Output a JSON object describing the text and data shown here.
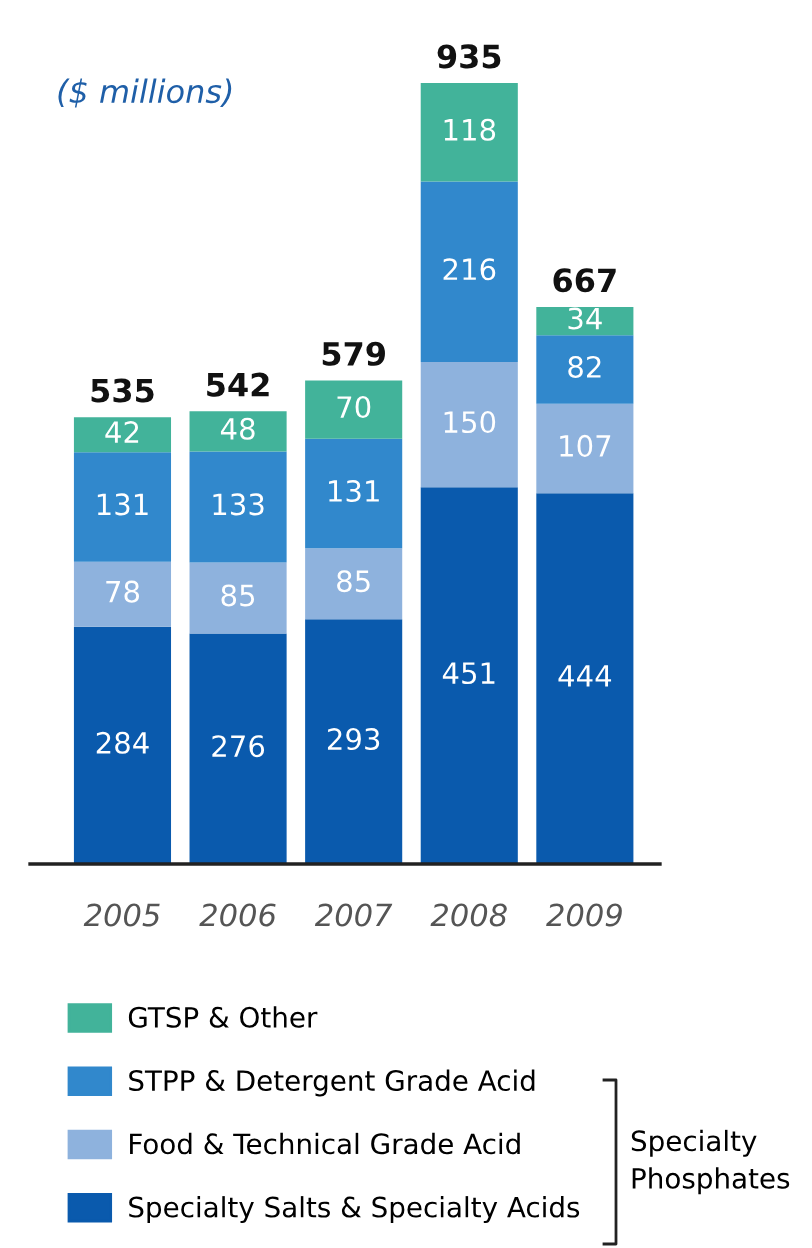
{
  "chart_data": {
    "type": "bar",
    "subtitle": "($ millions)",
    "stacked": true,
    "data_labels": true,
    "legend": "bottom",
    "categories": [
      "2005",
      "2006",
      "2007",
      "2008",
      "2009"
    ],
    "series": [
      {
        "name": "Specialty Salts & Specialty Acids",
        "color": "#0a5aad",
        "values": [
          284,
          276,
          293,
          451,
          444
        ]
      },
      {
        "name": "Food & Technical Grade Acid",
        "color": "#8eb2dd",
        "values": [
          78,
          85,
          85,
          150,
          107
        ]
      },
      {
        "name": "STPP & Detergent Grade Acid",
        "color": "#3188cc",
        "values": [
          131,
          133,
          131,
          216,
          82
        ]
      },
      {
        "name": "GTSP & Other",
        "color": "#42b39a",
        "values": [
          42,
          48,
          70,
          118,
          34
        ]
      }
    ],
    "totals": [
      "535",
      "542",
      "579",
      "935",
      "667"
    ],
    "annotations": [
      "Specialty Phosphates"
    ]
  }
}
